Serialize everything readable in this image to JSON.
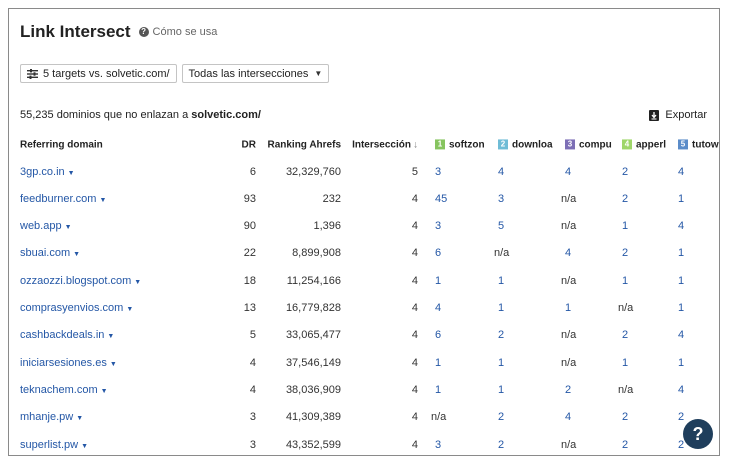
{
  "header": {
    "title": "Link Intersect",
    "help_link": "Cómo se usa"
  },
  "toolbar": {
    "targets_button": "5 targets vs. solvetic.com/",
    "filter_select": "Todas las intersecciones"
  },
  "summary": {
    "prefix": "55,235 dominios que no enlazan a ",
    "target": "solvetic.com/"
  },
  "export_label": "Exportar",
  "table": {
    "headers": {
      "referring_domain": "Referring domain",
      "dr": "DR",
      "ranking": "Ranking Ahrefs",
      "intersection": "Intersección",
      "sort_arrow": "↓"
    },
    "targets": [
      {
        "num": "1",
        "name": "softzon",
        "color": "#86c45f"
      },
      {
        "num": "2",
        "name": "downloa",
        "color": "#6fbcd6"
      },
      {
        "num": "3",
        "name": "compu",
        "color": "#7d6fb6"
      },
      {
        "num": "4",
        "name": "apperl",
        "color": "#9fd66a"
      },
      {
        "num": "5",
        "name": "tutow",
        "color": "#5b8cc9"
      }
    ],
    "rows": [
      {
        "domain": "3gp.co.in",
        "dr": "6",
        "rank": "32,329,760",
        "inter": "5",
        "t": [
          "3",
          "4",
          "4",
          "2",
          "4"
        ]
      },
      {
        "domain": "feedburner.com",
        "dr": "93",
        "rank": "232",
        "inter": "4",
        "t": [
          "45",
          "3",
          "n/a",
          "2",
          "1"
        ]
      },
      {
        "domain": "web.app",
        "dr": "90",
        "rank": "1,396",
        "inter": "4",
        "t": [
          "3",
          "5",
          "n/a",
          "1",
          "4"
        ]
      },
      {
        "domain": "sbuai.com",
        "dr": "22",
        "rank": "8,899,908",
        "inter": "4",
        "t": [
          "6",
          "n/a",
          "4",
          "2",
          "1"
        ]
      },
      {
        "domain": "ozzaozzi.blogspot.com",
        "dr": "18",
        "rank": "11,254,166",
        "inter": "4",
        "t": [
          "1",
          "1",
          "n/a",
          "1",
          "1"
        ]
      },
      {
        "domain": "comprasyenvios.com",
        "dr": "13",
        "rank": "16,779,828",
        "inter": "4",
        "t": [
          "4",
          "1",
          "1",
          "n/a",
          "1"
        ]
      },
      {
        "domain": "cashbackdeals.in",
        "dr": "5",
        "rank": "33,065,477",
        "inter": "4",
        "t": [
          "6",
          "2",
          "n/a",
          "2",
          "4"
        ]
      },
      {
        "domain": "iniciarsesiones.es",
        "dr": "4",
        "rank": "37,546,149",
        "inter": "4",
        "t": [
          "1",
          "1",
          "n/a",
          "1",
          "1"
        ]
      },
      {
        "domain": "teknachem.com",
        "dr": "4",
        "rank": "38,036,909",
        "inter": "4",
        "t": [
          "1",
          "1",
          "2",
          "n/a",
          "4"
        ]
      },
      {
        "domain": "mhanje.pw",
        "dr": "3",
        "rank": "41,309,389",
        "inter": "4",
        "t": [
          "n/a",
          "2",
          "4",
          "2",
          "2"
        ]
      },
      {
        "domain": "superlist.pw",
        "dr": "3",
        "rank": "43,352,599",
        "inter": "4",
        "t": [
          "3",
          "2",
          "n/a",
          "2",
          "2"
        ]
      }
    ]
  },
  "help_fab": "?"
}
